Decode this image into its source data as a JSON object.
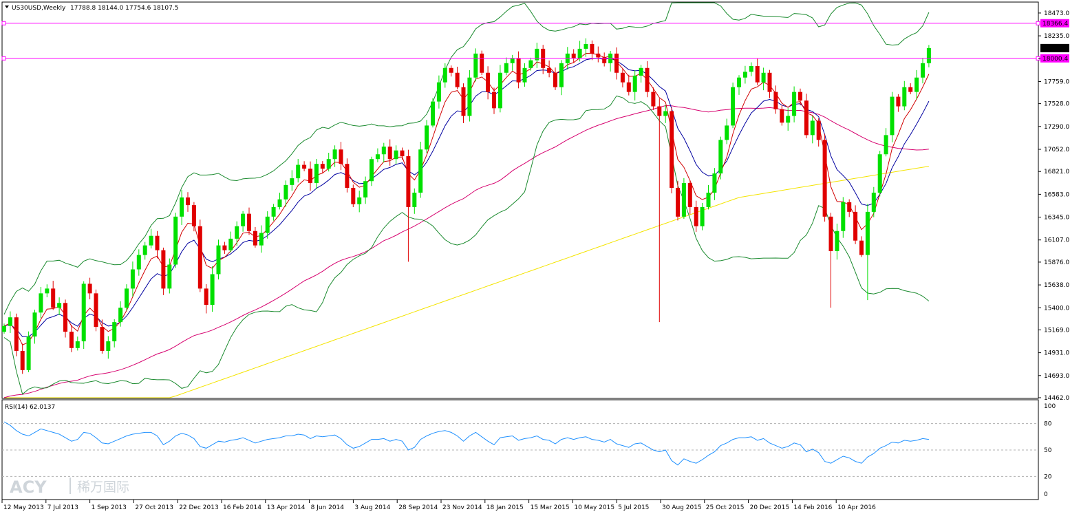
{
  "header": {
    "symbol": "US30USD,Weekly",
    "ohlc": "17788.8 18144.0 17754.6 18107.5"
  },
  "rsi_label": "RSI(14) 62.0137",
  "watermark": {
    "logo": "ACY",
    "cn": "稀万国际"
  },
  "chart_data": {
    "type": "candlestick",
    "timeframe": "Weekly",
    "price_axis_ticks": [
      18473.0,
      18235.0,
      17997.0,
      17759.0,
      17528.0,
      17290.0,
      17052.0,
      16821.0,
      16583.0,
      16345.0,
      16107.0,
      15876.0,
      15638.0,
      15400.0,
      15169.0,
      14931.0,
      14693.0,
      14462.0
    ],
    "price_range": [
      14462.0,
      18580.0
    ],
    "last_price": "18107.5",
    "horizontal_lines": [
      {
        "value": "18366.4",
        "color": "#ff00ff"
      },
      {
        "value": "18000.4",
        "color": "#ff00ff"
      }
    ],
    "x_ticks": [
      "12 May 2013",
      "7 Jul 2013",
      "1 Sep 2013",
      "27 Oct 2013",
      "22 Dec 2013",
      "16 Feb 2014",
      "13 Apr 2014",
      "8 Jun 2014",
      "3 Aug 2014",
      "28 Sep 2014",
      "23 Nov 2014",
      "18 Jan 2015",
      "15 Mar 2015",
      "10 May 2015",
      "5 Jul 2015",
      "30 Aug 2015",
      "25 Oct 2015",
      "20 Dec 2015",
      "14 Feb 2016",
      "10 Apr 2016"
    ],
    "rsi_axis_ticks": [
      100,
      80,
      50,
      20,
      0
    ],
    "rsi_period": 14,
    "rsi_last": 62.0137,
    "closes": [
      15210,
      15300,
      14950,
      14750,
      15100,
      15350,
      15550,
      15600,
      15400,
      15450,
      15150,
      14980,
      15050,
      15650,
      15550,
      15200,
      14950,
      15050,
      15250,
      15400,
      15600,
      15800,
      15950,
      16050,
      16150,
      16000,
      15600,
      15850,
      16350,
      16550,
      16470,
      16250,
      15600,
      15430,
      15750,
      16050,
      16000,
      16120,
      16250,
      16380,
      16200,
      16050,
      16180,
      16350,
      16450,
      16530,
      16680,
      16750,
      16890,
      16850,
      16700,
      16900,
      16850,
      16950,
      17050,
      16900,
      16650,
      16480,
      16550,
      16720,
      16950,
      17000,
      17080,
      16950,
      17040,
      16980,
      16450,
      16600,
      17050,
      17300,
      17550,
      17750,
      17900,
      17850,
      17700,
      17400,
      17800,
      18050,
      17850,
      17650,
      17480,
      17850,
      17950,
      18000,
      17750,
      17900,
      17980,
      18100,
      17900,
      17850,
      17700,
      17950,
      18050,
      18000,
      18100,
      18150,
      18050,
      18010,
      17950,
      18050,
      17850,
      17750,
      17650,
      17820,
      17900,
      17650,
      17500,
      17400,
      17450,
      16650,
      16350,
      16700,
      16450,
      16250,
      16450,
      16600,
      16800,
      17150,
      17300,
      17700,
      17800,
      17860,
      17920,
      17750,
      17850,
      17650,
      17470,
      17330,
      17400,
      17650,
      17560,
      17200,
      17350,
      17150,
      16350,
      15990,
      16200,
      16500,
      16400,
      16100,
      15950,
      16400,
      16600,
      17000,
      17200,
      17600,
      17500,
      17700,
      17650,
      17800,
      17950,
      18107.5
    ],
    "rsi_values": [
      82,
      78,
      72,
      68,
      66,
      70,
      74,
      72,
      70,
      68,
      64,
      60,
      62,
      70,
      69,
      64,
      58,
      57,
      60,
      63,
      66,
      68,
      69,
      70,
      70,
      66,
      56,
      60,
      66,
      69,
      67,
      63,
      54,
      52,
      56,
      60,
      59,
      61,
      62,
      64,
      61,
      58,
      60,
      62,
      63,
      64,
      66,
      66,
      68,
      67,
      63,
      66,
      65,
      66,
      67,
      63,
      56,
      52,
      54,
      58,
      62,
      62,
      63,
      60,
      62,
      60,
      50,
      53,
      62,
      66,
      69,
      71,
      72,
      70,
      66,
      60,
      66,
      70,
      65,
      60,
      56,
      64,
      65,
      66,
      61,
      63,
      64,
      66,
      62,
      61,
      57,
      62,
      64,
      62,
      64,
      65,
      62,
      61,
      59,
      62,
      57,
      55,
      53,
      57,
      58,
      54,
      50,
      48,
      50,
      38,
      33,
      40,
      37,
      35,
      39,
      44,
      48,
      55,
      58,
      62,
      64,
      64,
      65,
      61,
      63,
      58,
      55,
      52,
      54,
      58,
      56,
      48,
      51,
      47,
      37,
      35,
      39,
      43,
      41,
      37,
      35,
      42,
      46,
      52,
      55,
      59,
      58,
      61,
      60,
      61,
      63,
      62
    ]
  }
}
